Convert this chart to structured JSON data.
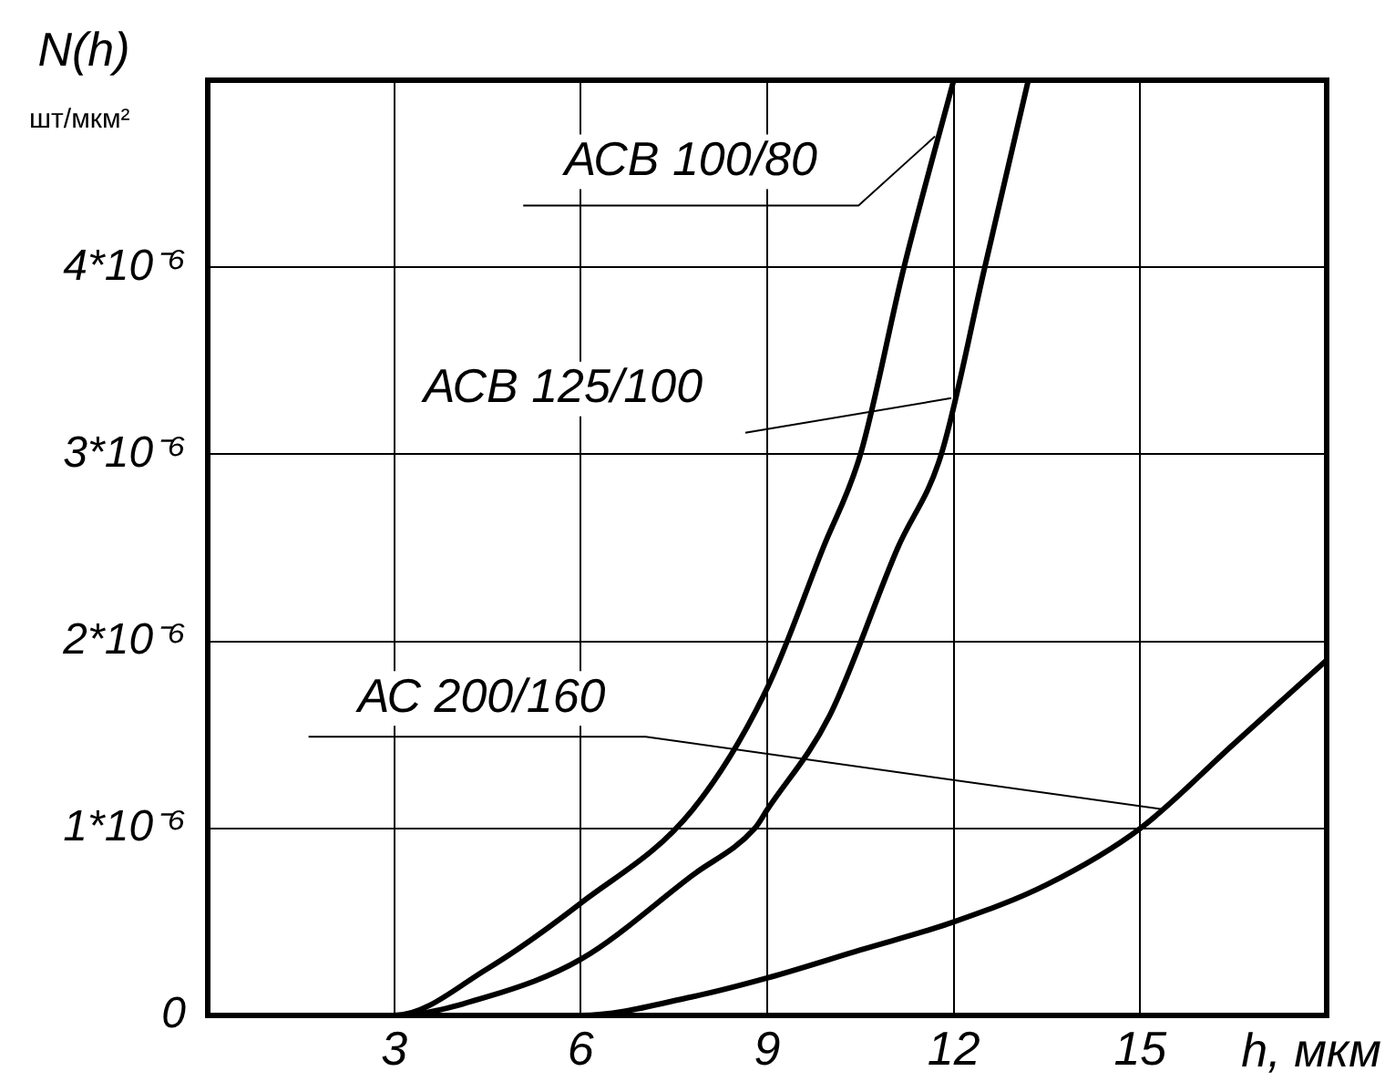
{
  "chart_data": {
    "type": "line",
    "ylabel": "N(h)",
    "xlabel": "h, мкм",
    "series": [
      {
        "color": "#000000",
        "x": [
          0,
          1.5,
          3,
          4.5,
          6,
          7.8,
          9,
          9.9,
          10.5,
          11.2,
          12
        ],
        "values": [
          0,
          0,
          0,
          2.5e-07,
          6e-07,
          1.1e-06,
          1.75e-06,
          2.5e-06,
          3e-06,
          4e-06,
          5e-06
        ]
      },
      {
        "color": "#000000",
        "x": [
          0,
          3,
          4.5,
          6,
          7.8,
          8.8,
          9,
          10,
          11.1,
          11.8,
          12.5,
          13.2
        ],
        "values": [
          0,
          0,
          1e-07,
          3e-07,
          7.5e-07,
          1e-06,
          1.1e-06,
          1.6e-06,
          2.5e-06,
          3e-06,
          4e-06,
          5e-06
        ]
      },
      {
        "color": "#000000",
        "x": [
          0,
          3,
          6,
          7.8,
          9,
          10.5,
          12,
          13.5,
          15,
          16.5,
          18
        ],
        "values": [
          0,
          0,
          0,
          1e-07,
          2e-07,
          3.5e-07,
          5e-07,
          7e-07,
          1e-06,
          1.45e-06,
          1.9e-06
        ]
      }
    ],
    "xlim": [
      0,
      18
    ],
    "xticks": [
      3,
      6,
      9,
      12,
      15
    ],
    "ylim": [
      0,
      5e-06
    ],
    "yticks": [
      0,
      {
        "value": 1e-06,
        "label": "1*10⁻⁶"
      },
      {
        "value": 2e-06,
        "label": "2*10⁻⁶"
      },
      {
        "value": 3e-06,
        "label": "3*10⁻⁶"
      },
      {
        "value": 4e-06,
        "label": "4*10⁻⁶"
      }
    ],
    "annotations": [
      {
        "text": "АСВ 100/80",
        "x": 11.7,
        "y": 4.7e-06
      },
      {
        "text": "АСВ 125/100",
        "x": 11.96,
        "y": 3.3e-06
      },
      {
        "text": "АС 200/160",
        "x": 15.4,
        "y": 1.1e-06
      },
      "шт/мкм²"
    ],
    "grid": true,
    "legend": false,
    "marker": "none",
    "line_style": "solid"
  }
}
